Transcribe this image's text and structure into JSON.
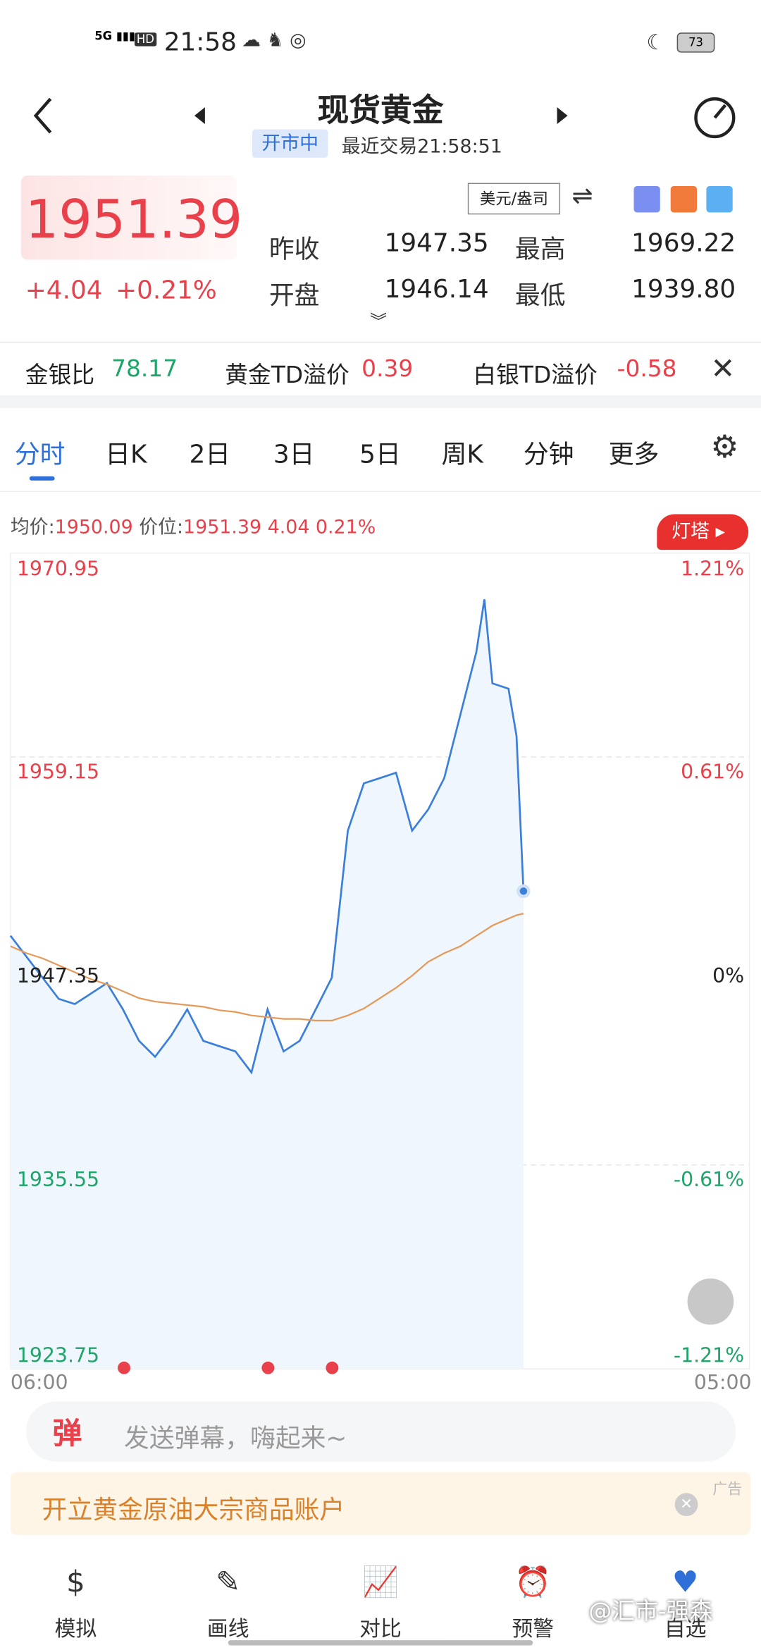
{
  "status_bar": {
    "time": "21:58",
    "battery": "73"
  },
  "header": {
    "title": "现货黄金",
    "market_status": "开市中",
    "last_trade": "最近交易21:58:51"
  },
  "quote": {
    "price": "1951.39",
    "change": "+4.04",
    "change_pct": "+0.21%",
    "unit": "美元/盎司",
    "stats": [
      {
        "label": "昨收",
        "value": "1947.35"
      },
      {
        "label": "最高",
        "value": "1969.22"
      },
      {
        "label": "开盘",
        "value": "1946.14"
      },
      {
        "label": "最低",
        "value": "1939.80"
      }
    ]
  },
  "ratios": [
    {
      "label": "金银比",
      "value": "78.17"
    },
    {
      "label": "黄金TD溢价",
      "value": "0.39"
    },
    {
      "label": "白银TD溢价",
      "value": "-0.58"
    }
  ],
  "tabs": [
    "分时",
    "日K",
    "2日",
    "3日",
    "5日",
    "周K",
    "分钟",
    "更多"
  ],
  "chart_info": {
    "avg_label": "均价:",
    "avg_value": "1950.09",
    "price_label": "价位:",
    "price_value": "1951.39 4.04 0.21%",
    "badge": "灯塔"
  },
  "chart_data": {
    "type": "line",
    "x": [
      "06:00",
      "06:30",
      "07:00",
      "07:30",
      "08:00",
      "08:30",
      "09:00",
      "09:30",
      "10:00",
      "10:30",
      "11:00",
      "11:30",
      "12:00",
      "12:30",
      "13:00",
      "13:30",
      "14:00",
      "14:30",
      "15:00",
      "15:30",
      "16:00",
      "16:30",
      "17:00",
      "17:30",
      "18:00",
      "18:30",
      "19:00",
      "19:30",
      "20:00",
      "20:30",
      "20:45",
      "21:00",
      "21:30",
      "21:45",
      "21:58"
    ],
    "series": [
      {
        "name": "价位",
        "color": "#3b7fd9",
        "values": [
          1948.81,
          1947.59,
          1946.38,
          1945.16,
          1944.86,
          1945.46,
          1946.07,
          1944.55,
          1942.73,
          1941.81,
          1943.03,
          1944.55,
          1942.73,
          1942.42,
          1942.12,
          1940.9,
          1944.55,
          1942.12,
          1942.73,
          1944.55,
          1946.38,
          1954.89,
          1957.63,
          1957.93,
          1958.24,
          1954.89,
          1956.11,
          1957.93,
          1961.58,
          1965.23,
          1968.27,
          1963.41,
          1963.1,
          1960.37,
          1951.39
        ]
      },
      {
        "name": "均价",
        "color": "#e39a5a",
        "values": [
          1948.2,
          1947.8,
          1947.5,
          1947.1,
          1946.7,
          1946.3,
          1946.0,
          1945.6,
          1945.2,
          1945.0,
          1944.9,
          1944.8,
          1944.7,
          1944.5,
          1944.4,
          1944.2,
          1944.1,
          1944.0,
          1944.0,
          1943.9,
          1943.9,
          1944.2,
          1944.6,
          1945.2,
          1945.8,
          1946.5,
          1947.3,
          1947.8,
          1948.2,
          1948.8,
          1949.1,
          1949.4,
          1949.8,
          1950.0,
          1950.09
        ]
      }
    ],
    "xlim": [
      "06:00",
      "05:00"
    ],
    "xticks": [
      "06:00",
      "05:00"
    ],
    "ylim": [
      1923.75,
      1970.95
    ],
    "yticks": [
      1923.75,
      1935.55,
      1947.35,
      1959.15,
      1970.95
    ],
    "y2lim": [
      -1.21,
      1.21
    ],
    "y2ticks": [
      {
        "value": -1.21,
        "label": "-1.21%"
      },
      {
        "value": -0.61,
        "label": "-0.61%"
      },
      {
        "value": 0,
        "label": "0%"
      },
      {
        "value": 0.61,
        "label": "0.61%"
      },
      {
        "value": 1.21,
        "label": "1.21%"
      }
    ],
    "grid": true
  },
  "danmaku": {
    "icon": "弹",
    "placeholder": "发送弹幕，嗨起来~"
  },
  "ad": {
    "text": "开立黄金原油大宗商品账户",
    "tag": "广告"
  },
  "nav": [
    "模拟",
    "画线",
    "对比",
    "预警",
    "自选"
  ],
  "watermark": "@汇市-强森"
}
